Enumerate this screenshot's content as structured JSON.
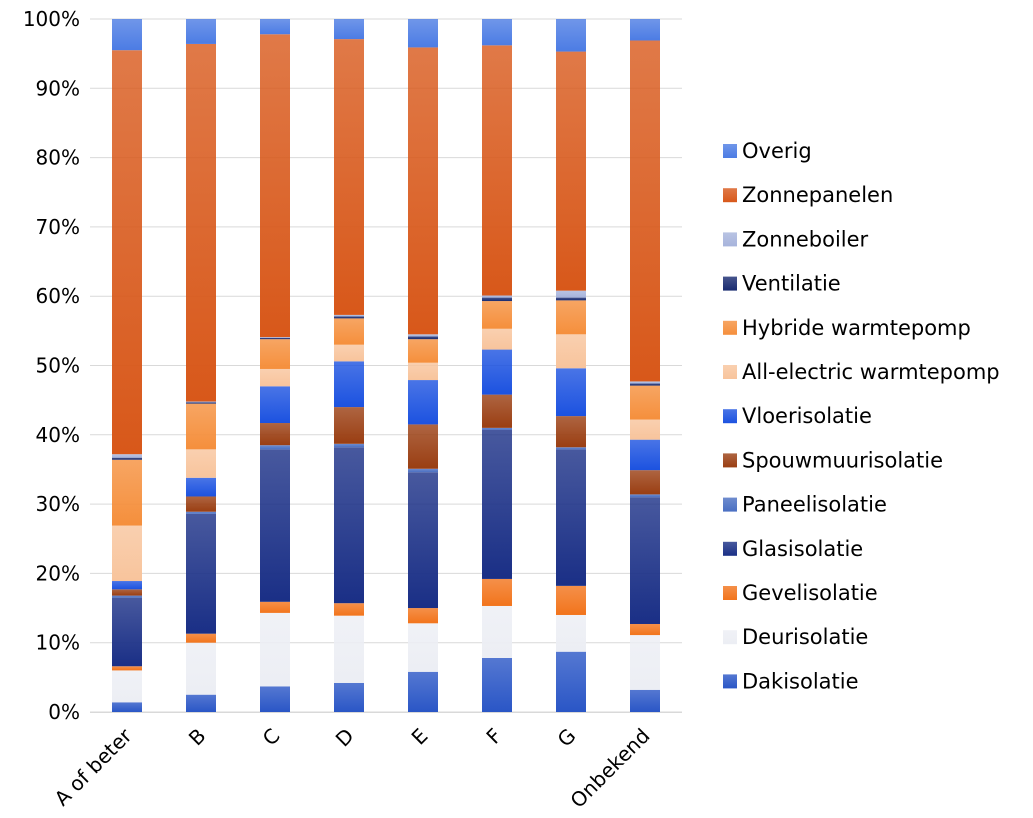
{
  "chart_data": {
    "type": "bar",
    "stacked": true,
    "categories": [
      "A of beter",
      "B",
      "C",
      "D",
      "E",
      "F",
      "G",
      "Onbekend"
    ],
    "y_ticks": [
      "0%",
      "10%",
      "20%",
      "30%",
      "40%",
      "50%",
      "60%",
      "70%",
      "80%",
      "90%",
      "100%"
    ],
    "ylim": [
      0,
      100
    ],
    "grid": true,
    "legend_position": "right",
    "series": [
      {
        "name": "Dakisolatie",
        "color": "#2a56c6",
        "values": [
          1.4,
          2.5,
          3.7,
          4.2,
          5.8,
          7.8,
          8.7,
          3.2
        ]
      },
      {
        "name": "Deurisolatie",
        "color": "#eceef4",
        "values": [
          4.6,
          7.5,
          10.6,
          9.7,
          7.0,
          7.5,
          5.3,
          7.9
        ]
      },
      {
        "name": "Gevelisolatie",
        "color": "#f2741c",
        "values": [
          0.6,
          1.3,
          1.6,
          1.8,
          2.2,
          3.9,
          4.2,
          1.6
        ]
      },
      {
        "name": "Glasisolatie",
        "color": "#1a2f86",
        "values": [
          9.9,
          17.3,
          22.0,
          22.5,
          19.6,
          21.5,
          19.7,
          18.3
        ]
      },
      {
        "name": "Paneelisolatie",
        "color": "#4a6fc2",
        "values": [
          0.3,
          0.3,
          0.6,
          0.5,
          0.5,
          0.3,
          0.3,
          0.4
        ]
      },
      {
        "name": "Spouwmuurisolatie",
        "color": "#9a3e12",
        "values": [
          0.9,
          2.2,
          3.2,
          5.3,
          6.4,
          4.8,
          4.5,
          3.5
        ]
      },
      {
        "name": "Vloerisolatie",
        "color": "#1c52e0",
        "values": [
          1.2,
          2.7,
          5.3,
          6.6,
          6.4,
          6.5,
          6.9,
          4.4
        ]
      },
      {
        "name": "All-electric warmtepomp",
        "color": "#f8c49c",
        "values": [
          8.0,
          4.1,
          2.5,
          2.4,
          2.5,
          3.0,
          4.9,
          2.9
        ]
      },
      {
        "name": "Hybride warmtepomp",
        "color": "#f58f3c",
        "values": [
          9.5,
          6.6,
          4.3,
          3.8,
          3.4,
          4.0,
          4.9,
          4.9
        ]
      },
      {
        "name": "Ventilatie",
        "color": "#182a70",
        "values": [
          0.3,
          0.2,
          0.2,
          0.3,
          0.4,
          0.5,
          0.4,
          0.3
        ]
      },
      {
        "name": "Zonneboiler",
        "color": "#a7b4dc",
        "values": [
          0.5,
          0.1,
          0.1,
          0.2,
          0.3,
          0.3,
          1.0,
          0.3
        ]
      },
      {
        "name": "Zonnepanelen",
        "color": "#d8581a",
        "values": [
          58.3,
          51.6,
          43.7,
          39.8,
          41.4,
          36.1,
          34.5,
          49.2
        ]
      },
      {
        "name": "Overig",
        "color": "#4c7ce4",
        "values": [
          4.5,
          3.6,
          2.2,
          2.9,
          4.1,
          3.8,
          4.7,
          3.1
        ]
      }
    ]
  }
}
